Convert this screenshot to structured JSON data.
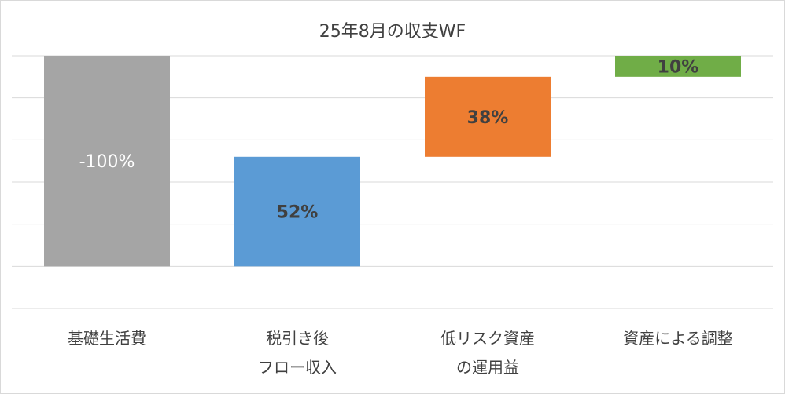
{
  "chart_data": {
    "type": "waterfall",
    "title": "25年8月の収支WF",
    "categories": [
      "基礎生活費",
      "税引き後\nフロー収入",
      "低リスク資産\nの運用益",
      "資産による調整"
    ],
    "values": [
      -100,
      52,
      38,
      10
    ],
    "value_labels": [
      "-100%",
      "52%",
      "38%",
      "10%"
    ],
    "colors": [
      "#a5a5a5",
      "#5b9bd5",
      "#ed7d31",
      "#70ad47"
    ],
    "label_colors": [
      "#ffffff",
      "#404040",
      "#404040",
      "#404040"
    ],
    "ylim": [
      -120,
      0
    ],
    "yticks": [
      -120,
      -100,
      -80,
      -60,
      -40,
      -20,
      0
    ],
    "grid": true
  }
}
